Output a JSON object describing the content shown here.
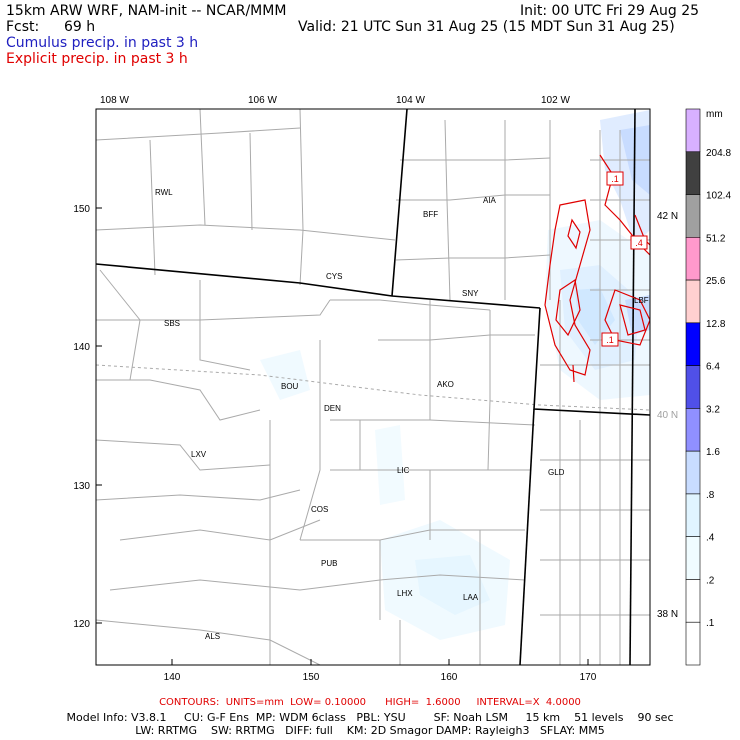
{
  "header": {
    "title": "15km ARW WRF, NAM-init -- NCAR/MMM",
    "init": "Init: 00 UTC Fri 29 Aug 25",
    "fcst_label": "Fcst:",
    "fcst_value": "69 h",
    "valid": "Valid: 21 UTC Sun 31 Aug 25 (15 MDT Sun 31 Aug 25)",
    "cumulus": "Cumulus precip. in past 3 h",
    "explicit": "Explicit precip. in past 3 h"
  },
  "colors": {
    "cumulus_text": "#2020c0",
    "explicit_text": "#e00000",
    "contour": "#e00000",
    "border": "#000000",
    "county": "#aaaaaa"
  },
  "axes": {
    "top_lon": [
      "108 W",
      "106 W",
      "104 W",
      "102 W"
    ],
    "right_lat": [
      "42 N",
      "40 N",
      "38 N"
    ],
    "left_y": [
      "150",
      "140",
      "130",
      "120"
    ],
    "bottom_x": [
      "140",
      "150",
      "160",
      "170"
    ]
  },
  "cities": [
    "RWL",
    "BFF",
    "AIA",
    "CYS",
    "SNY",
    "SBS",
    "LBF",
    "BOU",
    "AKO",
    "DEN",
    "LXV",
    "LIC",
    "GLD",
    "COS",
    "PUB",
    "LHX",
    "LAA",
    "ALS"
  ],
  "contour_labels": [
    ".1",
    ".4",
    ".1"
  ],
  "colorbar": {
    "unit": "mm",
    "levels": [
      "204.8",
      "102.4",
      "51.2",
      "25.6",
      "12.8",
      "6.4",
      "3.2",
      "1.6",
      ".8",
      ".4",
      ".2",
      ".1"
    ],
    "colors": [
      "#d8b0ff",
      "#404040",
      "#a0a0a0",
      "#ff99cc",
      "#ffd0d0",
      "#0000ff",
      "#5050e8",
      "#9090ff",
      "#c8dcff",
      "#e0f4ff",
      "#f0fcff",
      "#ffffff",
      "#ffffff"
    ]
  },
  "footer": {
    "contours": "CONTOURS:  UNITS=mm  LOW= 0.10000      HIGH=  1.6000     INTERVAL=X  4.0000",
    "model_info": "Model Info: V3.8.1     CU: G-F Ens  MP: WDM 6class   PBL: YSU        SF: Noah LSM     15 km    51 levels    90 sec",
    "model_info2": "LW: RRTMG    SW: RRTMG   DIFF: full    KM: 2D Smagor DAMP: Rayleigh3   SFLAY: MM5"
  }
}
